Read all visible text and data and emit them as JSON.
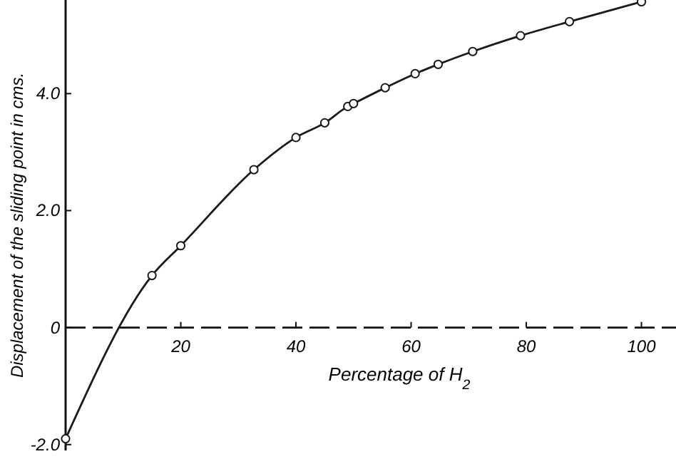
{
  "chart_data": {
    "type": "line",
    "xlabel": "Percentage of H$_{2}$",
    "ylabel": "Displacement of the sliding point in cms.",
    "x": [
      0,
      15,
      20,
      32.7,
      40,
      45,
      49,
      50,
      55.5,
      60.7,
      64.7,
      70.7,
      79,
      87.5,
      100
    ],
    "series": [
      {
        "color": "#1a1a1a",
        "values": [
          -1.9,
          0.89,
          1.4,
          2.7,
          3.25,
          3.5,
          3.78,
          3.83,
          4.1,
          4.34,
          4.5,
          4.72,
          4.99,
          5.23,
          5.57
        ]
      }
    ],
    "xlim": [
      0,
      106
    ],
    "ylim": [
      -2.1,
      5.6
    ],
    "xticks": [
      20,
      40,
      60,
      80,
      100
    ],
    "yticks": [
      {
        "value": -2,
        "label": "-2.0"
      },
      0,
      {
        "value": 2,
        "label": "2.0"
      },
      {
        "value": 4,
        "label": "4.0"
      }
    ],
    "marker": "circle",
    "line_style": "solid"
  }
}
